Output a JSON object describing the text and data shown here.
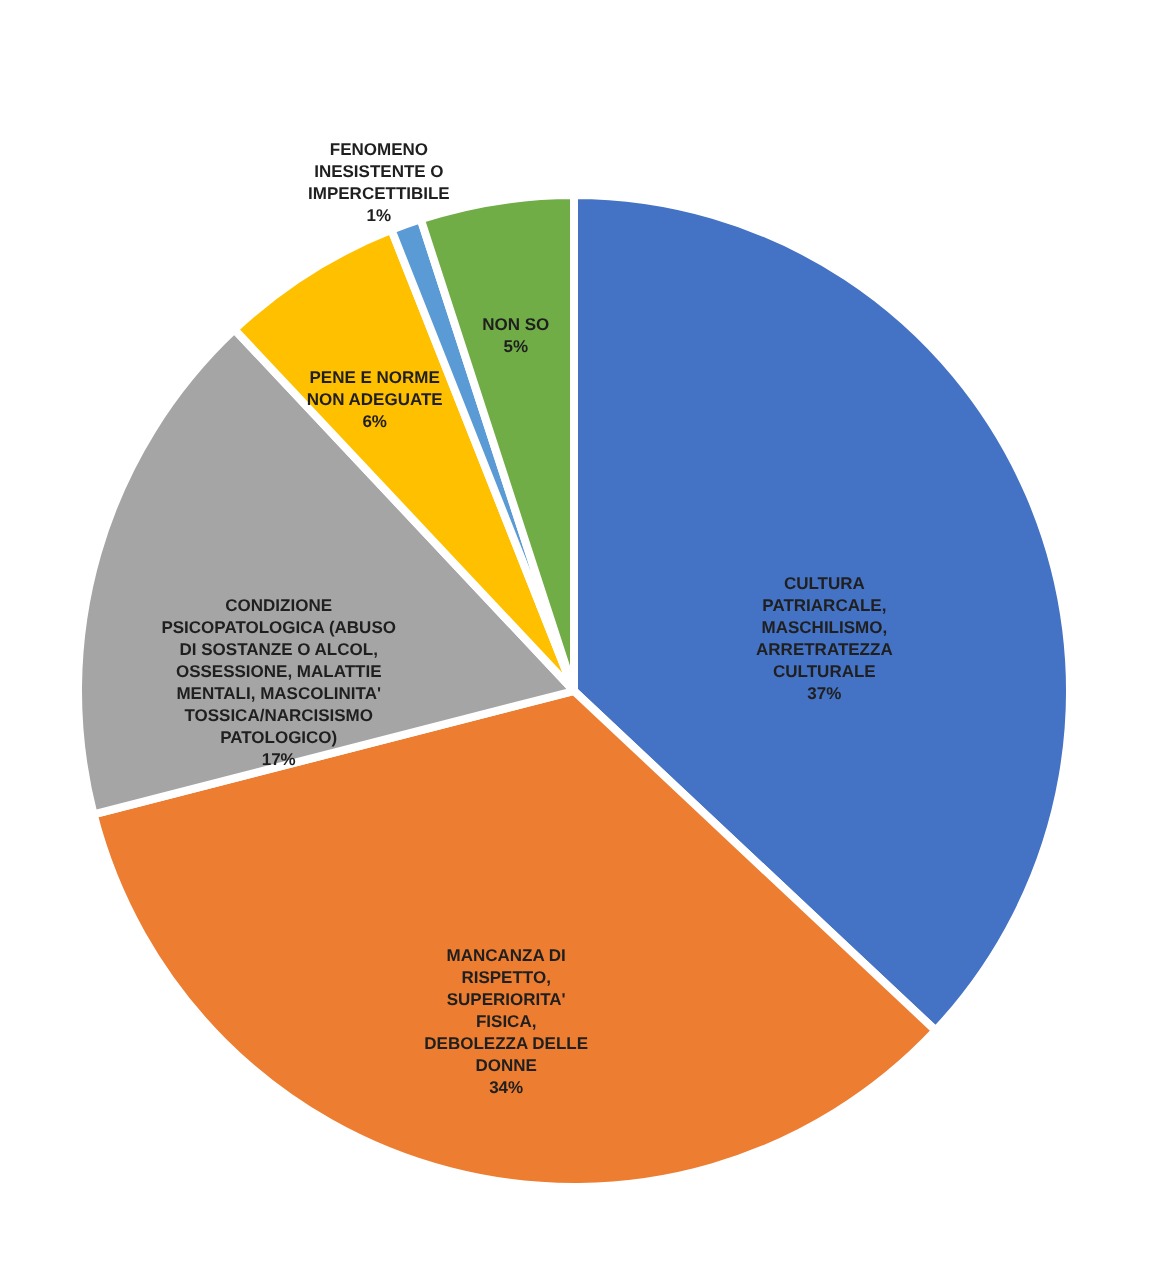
{
  "chart_data": {
    "type": "pie",
    "categories": [
      "CULTURA PATRIARCALE, MASCHILISMO, ARRETRATEZZA CULTURALE",
      "MANCANZA DI RISPETTO, SUPERIORITA' FISICA, DEBOLEZZA DELLE DONNE",
      "CONDIZIONE PSICOPATOLOGICA (ABUSO DI SOSTANZE O ALCOL, OSSESSIONE, MALATTIE MENTALI, MASCOLINITA' TOSSICA/NARCISISMO PATOLOGICO)",
      "PENE E NORME NON ADEGUATE",
      "FENOMENO INESISTENTE O IMPERCETTIBILE",
      "NON SO"
    ],
    "values": [
      37,
      34,
      17,
      6,
      1,
      5
    ],
    "value_labels": [
      "37%",
      "34%",
      "17%",
      "6%",
      "1%",
      "5%"
    ],
    "colors": [
      "#4472c4",
      "#ed7d31",
      "#a5a5a5",
      "#ffc000",
      "#5b9bd5",
      "#70ad47"
    ]
  }
}
